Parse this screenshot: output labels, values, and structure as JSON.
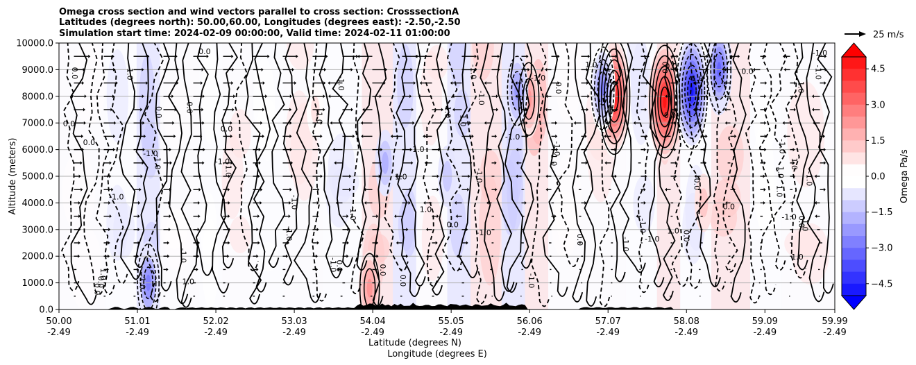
{
  "chart_data": {
    "type": "heatmap",
    "title_lines": [
      "Omega cross section and wind vectors parallel to cross section: CrosssectionA",
      "Latitudes (degrees north): 50.00,60.00, Longitudes (degrees east): -2.50,-2.50",
      "Simulation start time: 2024-02-09 00:00:00, Valid time: 2024-02-11 01:00:00"
    ],
    "ylabel": "Altitude (meters)",
    "xlabel_lines": [
      "Latitude (degrees N)",
      "Longitude (degrees E)"
    ],
    "ylim": [
      0,
      10000
    ],
    "xlim": [
      50.0,
      59.99
    ],
    "y_ticks": [
      "0.0",
      "1000.0",
      "2000.0",
      "3000.0",
      "4000.0",
      "5000.0",
      "6000.0",
      "7000.0",
      "8000.0",
      "9000.0",
      "10000.0"
    ],
    "x_ticks": [
      {
        "lat": "50.00",
        "lon": "-2.49"
      },
      {
        "lat": "51.01",
        "lon": "-2.49"
      },
      {
        "lat": "52.02",
        "lon": "-2.49"
      },
      {
        "lat": "53.03",
        "lon": "-2.49"
      },
      {
        "lat": "54.04",
        "lon": "-2.49"
      },
      {
        "lat": "55.05",
        "lon": "-2.49"
      },
      {
        "lat": "56.06",
        "lon": "-2.49"
      },
      {
        "lat": "57.07",
        "lon": "-2.49"
      },
      {
        "lat": "58.08",
        "lon": "-2.49"
      },
      {
        "lat": "59.09",
        "lon": "-2.49"
      },
      {
        "lat": "59.99",
        "lon": "-2.49"
      }
    ],
    "colorbar": {
      "label": "Omega Pa/s",
      "range": [
        -5.0,
        5.0
      ],
      "ticks": [
        "4.5",
        "3.0",
        "1.5",
        "0.0",
        "−1.5",
        "−3.0",
        "−4.5"
      ],
      "low_color": "#0000ff",
      "high_color": "#ff0000",
      "mid_color": "#ffffff"
    },
    "quiver_key": {
      "label": "25 m/s"
    },
    "contour_labels": [
      "0.0",
      "1.0",
      "-1.0"
    ],
    "features": [
      {
        "lat": 57.15,
        "alt": 8000,
        "omega": 4.8
      },
      {
        "lat": 57.8,
        "alt": 7800,
        "omega": 4.6
      },
      {
        "lat": 58.15,
        "alt": 8200,
        "omega": -4.8
      },
      {
        "lat": 57.0,
        "alt": 8300,
        "omega": -2.8
      },
      {
        "lat": 58.5,
        "alt": 9000,
        "omega": -3.0
      },
      {
        "lat": 56.05,
        "alt": 7900,
        "omega": 2.2
      },
      {
        "lat": 55.9,
        "alt": 8200,
        "omega": -2.0
      },
      {
        "lat": 54.2,
        "alt": 5500,
        "omega": -1.5
      },
      {
        "lat": 55.0,
        "alt": 5000,
        "omega": -1.2
      },
      {
        "lat": 54.0,
        "alt": 800,
        "omega": 2.0
      },
      {
        "lat": 51.15,
        "alt": 1000,
        "omega": -2.5
      },
      {
        "lat": 58.3,
        "alt": 4000,
        "omega": 1.0
      },
      {
        "lat": 53.3,
        "alt": 7500,
        "omega": 0.8
      }
    ]
  }
}
